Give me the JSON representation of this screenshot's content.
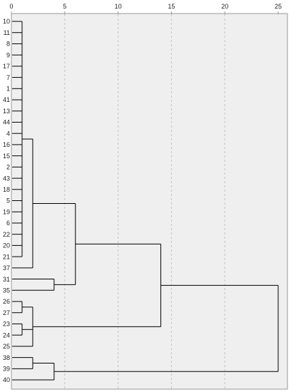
{
  "axis": {
    "ticks": [
      {
        "value": 0,
        "label": "0"
      },
      {
        "value": 5,
        "label": "5"
      },
      {
        "value": 10,
        "label": "10"
      },
      {
        "value": 15,
        "label": "15"
      },
      {
        "value": 20,
        "label": "20"
      },
      {
        "value": 25,
        "label": "25"
      }
    ]
  },
  "leaves": [
    "10",
    "11",
    "8",
    "9",
    "17",
    "7",
    "1",
    "41",
    "13",
    "44",
    "4",
    "16",
    "15",
    "2",
    "43",
    "18",
    "5",
    "19",
    "6",
    "22",
    "20",
    "21",
    "37",
    "31",
    "35",
    "26",
    "27",
    "23",
    "24",
    "25",
    "38",
    "39",
    "40"
  ],
  "merges": [
    {
      "id": "A",
      "height": 1.0,
      "children": [
        "10",
        "11",
        "8",
        "9",
        "17",
        "7",
        "1",
        "41",
        "13",
        "44",
        "4",
        "16",
        "15",
        "2",
        "43",
        "18",
        "5",
        "19",
        "6",
        "22",
        "20",
        "21"
      ]
    },
    {
      "id": "B",
      "height": 2.0,
      "children": [
        "A",
        "37"
      ]
    },
    {
      "id": "C",
      "height": 4.0,
      "children": [
        "31",
        "35"
      ]
    },
    {
      "id": "D",
      "height": 6.0,
      "children": [
        "B",
        "C"
      ]
    },
    {
      "id": "E",
      "height": 1.0,
      "children": [
        "26",
        "27"
      ]
    },
    {
      "id": "F",
      "height": 1.0,
      "children": [
        "23",
        "24"
      ]
    },
    {
      "id": "G",
      "height": 2.0,
      "children": [
        "E",
        "F",
        "25"
      ]
    },
    {
      "id": "H",
      "height": 14.0,
      "children": [
        "D",
        "G"
      ]
    },
    {
      "id": "I",
      "height": 2.0,
      "children": [
        "38",
        "39"
      ]
    },
    {
      "id": "J",
      "height": 4.0,
      "children": [
        "I",
        "40"
      ]
    },
    {
      "id": "K",
      "height": 25.0,
      "children": [
        "H",
        "J"
      ]
    }
  ],
  "colors": {
    "background": "#efefef",
    "frame": "#9a9a9a",
    "grid": "#c4c4c4",
    "line": "#000000",
    "text": "#222222"
  }
}
